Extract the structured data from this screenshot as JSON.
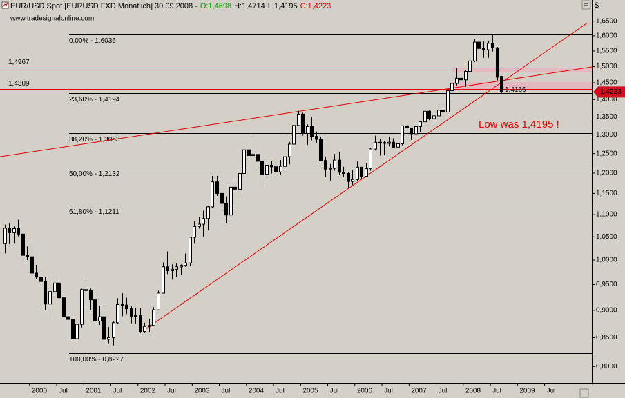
{
  "chart_data": {
    "type": "candlestick",
    "title": "EUR/USD Spot [EURUSD FXD  Monatlich] 30.09.2008 -",
    "ohlc_summary": [
      {
        "value": 1.4698,
        "label": "O:1,4698",
        "color": "#00a000"
      },
      {
        "value": 1.4714,
        "label": "H:1,4714",
        "color": "#000000"
      },
      {
        "value": 1.4195,
        "label": "L:1,4195",
        "color": "#000000"
      },
      {
        "value": 1.4223,
        "label": "C:1,4223",
        "color": "#e00000"
      }
    ],
    "source": "www.tradesignalonline.com",
    "axis_unit": "$",
    "up_color": "#ffffff",
    "down_color": "#000000",
    "x": [
      "1999-07",
      "1999-08",
      "1999-09",
      "1999-10",
      "1999-11",
      "1999-12",
      "2000-01",
      "2000-02",
      "2000-03",
      "2000-04",
      "2000-05",
      "2000-06",
      "2000-07",
      "2000-08",
      "2000-09",
      "2000-10",
      "2000-11",
      "2000-12",
      "2001-01",
      "2001-02",
      "2001-03",
      "2001-04",
      "2001-05",
      "2001-06",
      "2001-07",
      "2001-08",
      "2001-09",
      "2001-10",
      "2001-11",
      "2001-12",
      "2002-01",
      "2002-02",
      "2002-03",
      "2002-04",
      "2002-05",
      "2002-06",
      "2002-07",
      "2002-08",
      "2002-09",
      "2002-10",
      "2002-11",
      "2002-12",
      "2003-01",
      "2003-02",
      "2003-03",
      "2003-04",
      "2003-05",
      "2003-06",
      "2003-07",
      "2003-08",
      "2003-09",
      "2003-10",
      "2003-11",
      "2003-12",
      "2004-01",
      "2004-02",
      "2004-03",
      "2004-04",
      "2004-05",
      "2004-06",
      "2004-07",
      "2004-08",
      "2004-09",
      "2004-10",
      "2004-11",
      "2004-12",
      "2005-01",
      "2005-02",
      "2005-03",
      "2005-04",
      "2005-05",
      "2005-06",
      "2005-07",
      "2005-08",
      "2005-09",
      "2005-10",
      "2005-11",
      "2005-12",
      "2006-01",
      "2006-02",
      "2006-03",
      "2006-04",
      "2006-05",
      "2006-06",
      "2006-07",
      "2006-08",
      "2006-09",
      "2006-10",
      "2006-11",
      "2006-12",
      "2007-01",
      "2007-02",
      "2007-03",
      "2007-04",
      "2007-05",
      "2007-06",
      "2007-07",
      "2007-08",
      "2007-09",
      "2007-10",
      "2007-11",
      "2007-12",
      "2008-01",
      "2008-02",
      "2008-03",
      "2008-04",
      "2008-05",
      "2008-06",
      "2008-07",
      "2008-08",
      "2008-09"
    ],
    "open": [
      1.035,
      1.069,
      1.059,
      1.068,
      1.056,
      1.01,
      1.007,
      0.973,
      0.965,
      0.956,
      0.912,
      0.936,
      0.953,
      0.924,
      0.888,
      0.883,
      0.848,
      0.874,
      0.94,
      0.938,
      0.92,
      0.88,
      0.888,
      0.847,
      0.85,
      0.877,
      0.911,
      0.91,
      0.903,
      0.889,
      0.89,
      0.861,
      0.87,
      0.872,
      0.901,
      0.933,
      0.986,
      0.978,
      0.981,
      0.986,
      0.989,
      0.994,
      1.049,
      1.073,
      1.078,
      1.091,
      1.118,
      1.178,
      1.15,
      1.126,
      1.099,
      1.165,
      1.16,
      1.199,
      1.26,
      1.245,
      1.248,
      1.23,
      1.197,
      1.22,
      1.216,
      1.203,
      1.217,
      1.242,
      1.275,
      1.326,
      1.358,
      1.304,
      1.323,
      1.296,
      1.288,
      1.232,
      1.21,
      1.212,
      1.233,
      1.202,
      1.199,
      1.179,
      1.184,
      1.215,
      1.192,
      1.211,
      1.262,
      1.28,
      1.279,
      1.277,
      1.28,
      1.267,
      1.276,
      1.325,
      1.319,
      1.303,
      1.323,
      1.336,
      1.366,
      1.345,
      1.353,
      1.369,
      1.364,
      1.426,
      1.448,
      1.464,
      1.459,
      1.485,
      1.518,
      1.579,
      1.558,
      1.554,
      1.575,
      1.56,
      1.4698
    ],
    "high": [
      1.077,
      1.08,
      1.073,
      1.088,
      1.059,
      1.029,
      1.041,
      0.99,
      0.978,
      0.966,
      0.938,
      0.964,
      0.957,
      0.924,
      0.902,
      0.888,
      0.876,
      0.942,
      0.959,
      0.942,
      0.931,
      0.909,
      0.894,
      0.869,
      0.88,
      0.923,
      0.933,
      0.924,
      0.908,
      0.904,
      0.904,
      0.877,
      0.884,
      0.906,
      0.938,
      0.995,
      1.018,
      0.991,
      0.993,
      0.991,
      1.014,
      1.05,
      1.085,
      1.094,
      1.109,
      1.12,
      1.193,
      1.193,
      1.165,
      1.143,
      1.168,
      1.186,
      1.2,
      1.265,
      1.29,
      1.293,
      1.25,
      1.239,
      1.23,
      1.23,
      1.239,
      1.233,
      1.244,
      1.281,
      1.333,
      1.367,
      1.362,
      1.329,
      1.35,
      1.309,
      1.295,
      1.242,
      1.223,
      1.249,
      1.255,
      1.216,
      1.203,
      1.208,
      1.23,
      1.215,
      1.225,
      1.265,
      1.298,
      1.29,
      1.284,
      1.295,
      1.291,
      1.279,
      1.326,
      1.337,
      1.32,
      1.326,
      1.337,
      1.368,
      1.368,
      1.355,
      1.385,
      1.385,
      1.428,
      1.453,
      1.497,
      1.477,
      1.488,
      1.524,
      1.59,
      1.602,
      1.582,
      1.584,
      1.604,
      1.563,
      1.4714
    ],
    "low": [
      1.014,
      1.034,
      1.035,
      1.051,
      1.007,
      1.0,
      0.97,
      0.961,
      0.952,
      0.9,
      0.885,
      0.929,
      0.915,
      0.882,
      0.847,
      0.8227,
      0.839,
      0.868,
      0.912,
      0.901,
      0.875,
      0.873,
      0.846,
      0.84,
      0.836,
      0.875,
      0.889,
      0.893,
      0.876,
      0.875,
      0.858,
      0.858,
      0.859,
      0.871,
      0.9,
      0.933,
      0.971,
      0.96,
      0.965,
      0.969,
      0.986,
      0.987,
      1.035,
      1.068,
      1.05,
      1.064,
      1.115,
      1.144,
      1.108,
      1.08,
      1.077,
      1.151,
      1.139,
      1.196,
      1.239,
      1.235,
      1.206,
      1.176,
      1.18,
      1.199,
      1.2,
      1.195,
      1.203,
      1.222,
      1.27,
      1.324,
      1.298,
      1.273,
      1.285,
      1.279,
      1.23,
      1.191,
      1.181,
      1.206,
      1.195,
      1.19,
      1.164,
      1.17,
      1.18,
      1.185,
      1.192,
      1.206,
      1.258,
      1.245,
      1.247,
      1.269,
      1.265,
      1.248,
      1.272,
      1.309,
      1.286,
      1.292,
      1.307,
      1.331,
      1.341,
      1.326,
      1.348,
      1.326,
      1.357,
      1.406,
      1.442,
      1.432,
      1.438,
      1.45,
      1.514,
      1.55,
      1.528,
      1.528,
      1.548,
      1.457,
      1.4195
    ],
    "close": [
      1.069,
      1.059,
      1.068,
      1.056,
      1.01,
      1.007,
      0.973,
      0.965,
      0.956,
      0.912,
      0.936,
      0.953,
      0.924,
      0.888,
      0.883,
      0.848,
      0.874,
      0.94,
      0.938,
      0.92,
      0.88,
      0.888,
      0.847,
      0.85,
      0.877,
      0.911,
      0.91,
      0.903,
      0.889,
      0.89,
      0.861,
      0.87,
      0.872,
      0.901,
      0.933,
      0.986,
      0.978,
      0.981,
      0.986,
      0.989,
      0.994,
      1.049,
      1.073,
      1.078,
      1.091,
      1.118,
      1.178,
      1.15,
      1.126,
      1.099,
      1.165,
      1.16,
      1.199,
      1.26,
      1.245,
      1.248,
      1.23,
      1.197,
      1.22,
      1.216,
      1.203,
      1.217,
      1.242,
      1.275,
      1.326,
      1.358,
      1.304,
      1.323,
      1.296,
      1.288,
      1.232,
      1.21,
      1.212,
      1.233,
      1.202,
      1.199,
      1.179,
      1.184,
      1.215,
      1.192,
      1.211,
      1.262,
      1.28,
      1.279,
      1.277,
      1.28,
      1.267,
      1.276,
      1.325,
      1.319,
      1.303,
      1.323,
      1.336,
      1.366,
      1.345,
      1.353,
      1.369,
      1.364,
      1.426,
      1.448,
      1.464,
      1.459,
      1.485,
      1.518,
      1.579,
      1.558,
      1.554,
      1.575,
      1.56,
      1.467,
      1.4223
    ],
    "xlim": [
      "1999-06",
      "2010-05"
    ],
    "ylim": [
      0.7731,
      1.6805
    ],
    "log_scale": true,
    "yticks": [
      {
        "value": 0.8,
        "label": "0,8000"
      },
      {
        "value": 0.85,
        "label": "0,8500"
      },
      {
        "value": 0.9,
        "label": "0,9000"
      },
      {
        "value": 0.95,
        "label": "0,9500"
      },
      {
        "value": 1.0,
        "label": "1,0000"
      },
      {
        "value": 1.05,
        "label": "1,0500"
      },
      {
        "value": 1.1,
        "label": "1,1000"
      },
      {
        "value": 1.15,
        "label": "1,1500"
      },
      {
        "value": 1.2,
        "label": "1,2000"
      },
      {
        "value": 1.25,
        "label": "1,2500"
      },
      {
        "value": 1.3,
        "label": "1,3000"
      },
      {
        "value": 1.35,
        "label": "1,3500"
      },
      {
        "value": 1.4,
        "label": "1,4000"
      },
      {
        "value": 1.45,
        "label": "1,4500"
      },
      {
        "value": 1.5,
        "label": "1,5000"
      },
      {
        "value": 1.55,
        "label": "1,5500"
      },
      {
        "value": 1.6,
        "label": "1,6000"
      },
      {
        "value": 1.65,
        "label": "1,6500"
      }
    ],
    "xticks": [
      {
        "value": "2000-01",
        "label": "2000"
      },
      {
        "value": "2000-07",
        "label": "Jul"
      },
      {
        "value": "2001-01",
        "label": "2001"
      },
      {
        "value": "2001-07",
        "label": "Jul"
      },
      {
        "value": "2002-01",
        "label": "2002"
      },
      {
        "value": "2002-07",
        "label": "Jul"
      },
      {
        "value": "2003-01",
        "label": "2003"
      },
      {
        "value": "2003-07",
        "label": "Jul"
      },
      {
        "value": "2004-01",
        "label": "2004"
      },
      {
        "value": "2004-07",
        "label": "Jul"
      },
      {
        "value": "2005-01",
        "label": "2005"
      },
      {
        "value": "2005-07",
        "label": "Jul"
      },
      {
        "value": "2006-01",
        "label": "2006"
      },
      {
        "value": "2006-07",
        "label": "Jul"
      },
      {
        "value": "2007-01",
        "label": "2007"
      },
      {
        "value": "2007-07",
        "label": "Jul"
      },
      {
        "value": "2008-01",
        "label": "2008"
      },
      {
        "value": "2008-07",
        "label": "Jul"
      },
      {
        "value": "2009-01",
        "label": "2009"
      },
      {
        "value": "2009-07",
        "label": "Jul"
      }
    ],
    "fib_levels": [
      {
        "value": 1.6036,
        "label": "0,00% - 1,6036"
      },
      {
        "value": 1.4194,
        "label": "23,60% - 1,4194"
      },
      {
        "value": 1.3053,
        "label": "38,20% - 1,3053"
      },
      {
        "value": 1.2132,
        "label": "50,00% - 1,2132"
      },
      {
        "value": 1.1211,
        "label": "61,80% - 1,1211"
      },
      {
        "value": 0.8227,
        "label": "100,00% - 0,8227"
      }
    ],
    "fib_color": "#000000",
    "hlines": [
      {
        "value": 1.4967,
        "label": "1,4967"
      },
      {
        "value": 1.4309,
        "label": "1,4309"
      }
    ],
    "line_color": "#e00000",
    "trendlines": [
      {
        "x": [
          "1999-06",
          "2010-05"
        ],
        "values": [
          1.242,
          1.499
        ]
      },
      {
        "x": [
          "2002-02",
          "2010-04"
        ],
        "values": [
          0.864,
          1.644
        ]
      }
    ],
    "trend_value": {
      "value": 1.4166,
      "label": "1,4166"
    },
    "current_price": {
      "value": 1.4223,
      "label": "1,4223"
    },
    "annotation": "Low was 1,4195 !"
  }
}
